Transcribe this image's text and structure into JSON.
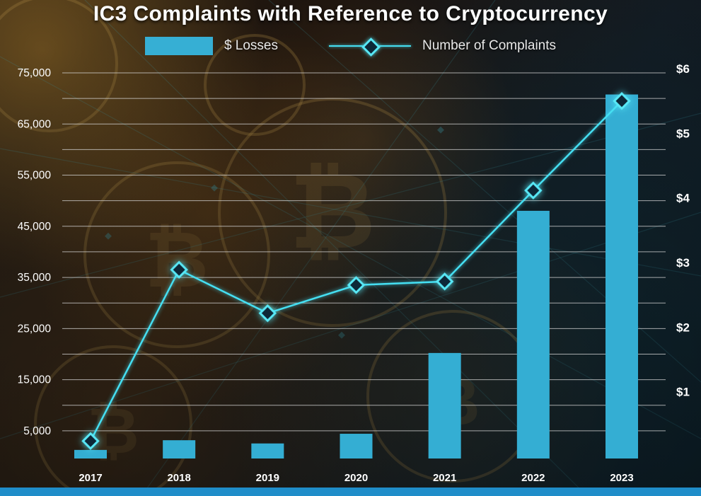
{
  "title": "IC3 Complaints with Reference to Cryptocurrency",
  "legend": {
    "losses_label": "$ Losses",
    "complaints_label": "Number of Complaints"
  },
  "colors": {
    "bar": "#34aed3",
    "line": "#45dff2",
    "marker_fill": "#0d2838",
    "marker_stroke": "#58e8f6",
    "grid": "#d8d8d8",
    "text": "#ffffff",
    "bottom_strip": "#1f8dc9"
  },
  "chart_data": {
    "type": "combo",
    "title": "IC3 Complaints with Reference to Cryptocurrency",
    "categories": [
      "2017",
      "2018",
      "2019",
      "2020",
      "2021",
      "2022",
      "2023"
    ],
    "series": [
      {
        "name": "$ Losses",
        "type": "bar",
        "axis": "right",
        "unit": "billions USD",
        "values": [
          0.1,
          0.25,
          0.2,
          0.35,
          1.6,
          3.8,
          5.6
        ]
      },
      {
        "name": "Number of Complaints",
        "type": "line",
        "axis": "left",
        "values": [
          3000,
          36500,
          28000,
          33500,
          34200,
          52000,
          69500
        ]
      }
    ],
    "left_axis": {
      "tick_labels": [
        "75,000",
        "65,000",
        "55,000",
        "45,000",
        "35,000",
        "25,000",
        "15,000",
        "5,000"
      ],
      "tick_values": [
        75000,
        65000,
        55000,
        45000,
        35000,
        25000,
        15000,
        5000
      ],
      "min": 0,
      "max": 75000,
      "gridline_step": 5000
    },
    "right_axis": {
      "tick_labels": [
        "$6",
        "$5",
        "$4",
        "$3",
        "$2",
        "$1"
      ],
      "tick_values": [
        6,
        5,
        4,
        3,
        2,
        1
      ],
      "min": 0,
      "max": 6
    },
    "grid": true,
    "legend_position": "top"
  }
}
